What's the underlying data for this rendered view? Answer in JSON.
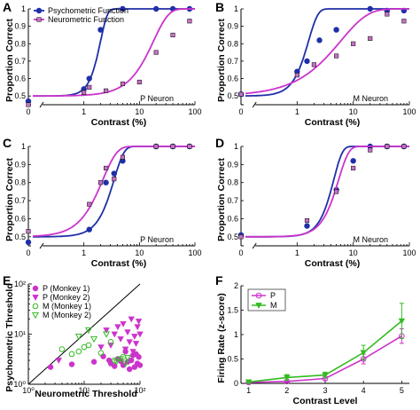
{
  "colors": {
    "psycho": "#1f2fa8",
    "neuro": "#cc33cc",
    "m_green": "#33bb22",
    "diag": "#000000"
  },
  "chart_data": [
    {
      "id": "A",
      "type": "line",
      "panel_label": "A",
      "xlabel": "Contrast (%)",
      "ylabel": "Proportion Correct",
      "xscale": "log",
      "xlim": [
        0.1,
        100
      ],
      "ylim": [
        0.45,
        1.0
      ],
      "xticks": [
        "0",
        "1",
        "10",
        "100"
      ],
      "yticks": [
        "0.5",
        "0.6",
        "0.7",
        "0.8",
        "0.9",
        "1"
      ],
      "annotation": "P Neuron",
      "legend": {
        "placement": "top-left",
        "entries": [
          "Psychometric Function",
          "Neurometric Function"
        ]
      },
      "series": [
        {
          "name": "Psychometric Function",
          "role": "psycho",
          "marker": "circle",
          "threshold": 2.0,
          "slope": 3.5,
          "points": [
            [
              0.1,
              0.47
            ],
            [
              1.0,
              0.54
            ],
            [
              1.25,
              0.6
            ],
            [
              2.0,
              0.88
            ],
            [
              5.0,
              1.0
            ],
            [
              20,
              1.0
            ],
            [
              40,
              1.0
            ],
            [
              80,
              1.0
            ]
          ]
        },
        {
          "name": "Neurometric Function",
          "role": "neuro",
          "marker": "square",
          "threshold": 18,
          "slope": 1.6,
          "points": [
            [
              0.1,
              0.45
            ],
            [
              1.0,
              0.52
            ],
            [
              1.25,
              0.55
            ],
            [
              2.5,
              0.53
            ],
            [
              5.0,
              0.57
            ],
            [
              10,
              0.58
            ],
            [
              20,
              0.75
            ],
            [
              40,
              0.85
            ],
            [
              80,
              0.93
            ]
          ]
        }
      ]
    },
    {
      "id": "B",
      "type": "line",
      "panel_label": "B",
      "xlabel": "Contrast (%)",
      "ylabel": "Proportion Correct",
      "xscale": "log",
      "xlim": [
        0.1,
        100
      ],
      "ylim": [
        0.45,
        1.0
      ],
      "xticks": [
        "0",
        "1",
        "10",
        "100"
      ],
      "yticks": [
        "0.5",
        "0.6",
        "0.7",
        "0.8",
        "0.9",
        "1"
      ],
      "annotation": "M Neuron",
      "series": [
        {
          "name": "Psychometric Function",
          "role": "psycho",
          "marker": "circle",
          "threshold": 1.6,
          "slope": 2.6,
          "points": [
            [
              0.1,
              0.51
            ],
            [
              1.0,
              0.64
            ],
            [
              1.5,
              0.7
            ],
            [
              2.5,
              0.82
            ],
            [
              5,
              0.88
            ],
            [
              20,
              1.0
            ],
            [
              40,
              0.99
            ],
            [
              80,
              0.99
            ]
          ]
        },
        {
          "name": "Neurometric Function",
          "role": "neuro",
          "marker": "square",
          "threshold": 6,
          "slope": 0.9,
          "points": [
            [
              0.1,
              0.51
            ],
            [
              1.0,
              0.62
            ],
            [
              2.0,
              0.68
            ],
            [
              5,
              0.73
            ],
            [
              10,
              0.8
            ],
            [
              20,
              0.83
            ],
            [
              40,
              0.97
            ],
            [
              80,
              0.93
            ]
          ]
        }
      ]
    },
    {
      "id": "C",
      "type": "line",
      "panel_label": "C",
      "xlabel": "Contrast (%)",
      "ylabel": "Proportion Correct",
      "xscale": "log",
      "xlim": [
        0.1,
        100
      ],
      "ylim": [
        0.45,
        1.0
      ],
      "xticks": [
        "0",
        "1",
        "10",
        "100"
      ],
      "yticks": [
        "0.5",
        "0.6",
        "0.7",
        "0.8",
        "0.9",
        "1"
      ],
      "annotation": "P Neuron",
      "series": [
        {
          "name": "Psychometric Function",
          "role": "psycho",
          "marker": "circle",
          "threshold": 3.5,
          "slope": 2.4,
          "points": [
            [
              0.1,
              0.47
            ],
            [
              1.25,
              0.54
            ],
            [
              2.5,
              0.8
            ],
            [
              3.5,
              0.85
            ],
            [
              5,
              0.92
            ],
            [
              20,
              1.0
            ],
            [
              40,
              1.0
            ],
            [
              80,
              1.0
            ]
          ]
        },
        {
          "name": "Neurometric Function",
          "role": "neuro",
          "marker": "square",
          "threshold": 2.2,
          "slope": 1.7,
          "points": [
            [
              0.1,
              0.53
            ],
            [
              1.25,
              0.68
            ],
            [
              2.0,
              0.8
            ],
            [
              2.5,
              0.88
            ],
            [
              3.5,
              0.82
            ],
            [
              5,
              0.94
            ],
            [
              20,
              1.0
            ],
            [
              40,
              1.0
            ],
            [
              80,
              1.0
            ]
          ]
        }
      ]
    },
    {
      "id": "D",
      "type": "line",
      "panel_label": "D",
      "xlabel": "Contrast (%)",
      "ylabel": "Proportion Correct",
      "xscale": "log",
      "xlim": [
        0.1,
        100
      ],
      "ylim": [
        0.45,
        1.0
      ],
      "xticks": [
        "0",
        "1",
        "10",
        "100"
      ],
      "yticks": [
        "0.5",
        "0.6",
        "0.7",
        "0.8",
        "0.9",
        "1"
      ],
      "annotation": "M Neuron",
      "series": [
        {
          "name": "Psychometric Function",
          "role": "psycho",
          "marker": "circle",
          "threshold": 4.5,
          "slope": 2.8,
          "points": [
            [
              0.1,
              0.51
            ],
            [
              1.5,
              0.56
            ],
            [
              5,
              0.76
            ],
            [
              10,
              0.92
            ],
            [
              20,
              1.0
            ],
            [
              40,
              1.0
            ],
            [
              80,
              1.0
            ]
          ]
        },
        {
          "name": "Neurometric Function",
          "role": "neuro",
          "marker": "square",
          "threshold": 5.5,
          "slope": 2.4,
          "points": [
            [
              0.1,
              0.5
            ],
            [
              1.5,
              0.59
            ],
            [
              5,
              0.75
            ],
            [
              10,
              0.88
            ],
            [
              20,
              0.98
            ],
            [
              40,
              1.0
            ],
            [
              80,
              1.0
            ]
          ]
        }
      ]
    },
    {
      "id": "E",
      "type": "scatter",
      "panel_label": "E",
      "xlabel": "Neurometric Threshold",
      "ylabel": "Psychometric Threshold",
      "xscale": "log",
      "yscale": "log",
      "xlim": [
        1,
        100
      ],
      "ylim": [
        1,
        100
      ],
      "xticks": [
        "10⁰",
        "10¹",
        "10²"
      ],
      "yticks": [
        "10⁰",
        "10¹",
        "10²"
      ],
      "diagonal": true,
      "legend": {
        "placement": "top-left",
        "entries": [
          "P (Monkey 1)",
          "P (Monkey 2)",
          "M (Monkey 1)",
          "M (Monkey 2)"
        ]
      },
      "series": [
        {
          "name": "P (Monkey 1)",
          "marker": "filled-circle",
          "color_role": "neuro",
          "points": [
            [
              2.5,
              2.2
            ],
            [
              6,
              2.5
            ],
            [
              15,
              2.8
            ],
            [
              22,
              3.6
            ],
            [
              30,
              2.6
            ],
            [
              40,
              3.2
            ],
            [
              50,
              2.4
            ],
            [
              60,
              2.8
            ],
            [
              70,
              3.0
            ],
            [
              80,
              2.2
            ],
            [
              90,
              2.6
            ],
            [
              95,
              3.5
            ],
            [
              85,
              4.0
            ],
            [
              55,
              4.5
            ],
            [
              65,
              2.0
            ],
            [
              45,
              2.9
            ],
            [
              75,
              3.8
            ],
            [
              100,
              2.4
            ],
            [
              35,
              2.3
            ],
            [
              28,
              3.0
            ]
          ]
        },
        {
          "name": "P (Monkey 2)",
          "marker": "filled-triangle",
          "color_role": "neuro",
          "points": [
            [
              3.5,
              3.0
            ],
            [
              25,
              12
            ],
            [
              35,
              10
            ],
            [
              50,
              16
            ],
            [
              60,
              11
            ],
            [
              70,
              20
            ],
            [
              80,
              9
            ],
            [
              90,
              14
            ],
            [
              95,
              18
            ],
            [
              45,
              8
            ],
            [
              30,
              6
            ],
            [
              55,
              5
            ],
            [
              65,
              7
            ],
            [
              75,
              4.5
            ],
            [
              85,
              6.5
            ],
            [
              100,
              10
            ],
            [
              40,
              14
            ],
            [
              20,
              5.5
            ]
          ]
        },
        {
          "name": "M (Monkey 1)",
          "marker": "open-circle",
          "color_role": "m_green",
          "points": [
            [
              4,
              5
            ],
            [
              6,
              4
            ],
            [
              8,
              4.5
            ],
            [
              10,
              5.5
            ],
            [
              12,
              6
            ],
            [
              30,
              7
            ],
            [
              35,
              3.0
            ],
            [
              50,
              3.5
            ],
            [
              20,
              4.2
            ]
          ]
        },
        {
          "name": "M (Monkey 2)",
          "marker": "open-triangle",
          "color_role": "m_green",
          "points": [
            [
              8,
              9
            ],
            [
              12,
              12
            ],
            [
              15,
              8
            ],
            [
              25,
              10
            ],
            [
              38,
              2.8
            ],
            [
              45,
              3.2
            ],
            [
              55,
              2.6
            ],
            [
              60,
              3.4
            ]
          ]
        }
      ]
    },
    {
      "id": "F",
      "type": "line",
      "panel_label": "F",
      "xlabel": "Contrast Level",
      "ylabel": "Firing Rate (z-score)",
      "xlim": [
        0.8,
        5.2
      ],
      "ylim": [
        0,
        2
      ],
      "xticks": [
        "1",
        "2",
        "3",
        "4",
        "5"
      ],
      "yticks": [
        "0",
        "0.5",
        "1",
        "1.5",
        "2"
      ],
      "legend": {
        "placement": "top-left",
        "entries": [
          "P",
          "M"
        ]
      },
      "series": [
        {
          "name": "P",
          "marker": "circle",
          "color_role": "neuro",
          "x": [
            1,
            2,
            3,
            4,
            5
          ],
          "values": [
            0.02,
            0.04,
            0.1,
            0.5,
            0.97
          ],
          "errors": [
            0.01,
            0.02,
            0.04,
            0.1,
            0.15
          ]
        },
        {
          "name": "M",
          "marker": "triangle-down",
          "color_role": "m_green",
          "x": [
            1,
            2,
            3,
            4,
            5
          ],
          "values": [
            0.03,
            0.12,
            0.17,
            0.63,
            1.28
          ],
          "errors": [
            0.02,
            0.06,
            0.06,
            0.15,
            0.36
          ]
        }
      ]
    }
  ]
}
